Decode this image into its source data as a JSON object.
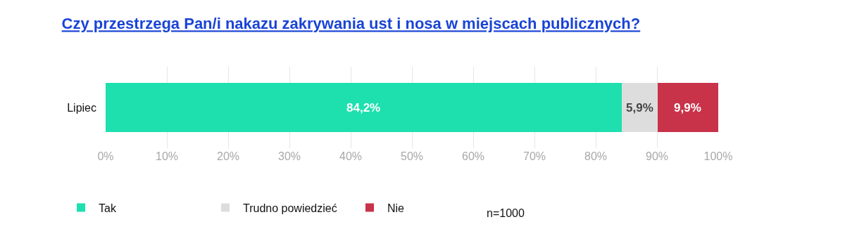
{
  "chart_data": {
    "type": "bar",
    "orientation": "horizontal",
    "stacked": true,
    "title": "Czy przestrzega Pan/i nakazu zakrywania ust i nosa w miejscach publicznych?",
    "categories": [
      "Lipiec"
    ],
    "series": [
      {
        "name": "Tak",
        "color": "#1de0ae",
        "values": [
          84.2
        ],
        "value_labels": [
          "84,2%"
        ]
      },
      {
        "name": "Trudno powiedzieć",
        "color": "#dddddd",
        "values": [
          5.9
        ],
        "value_labels": [
          "5,9%"
        ]
      },
      {
        "name": "Nie",
        "color": "#c8334a",
        "values": [
          9.9
        ],
        "value_labels": [
          "9,9%"
        ]
      }
    ],
    "xlim": [
      0,
      100
    ],
    "xticks": [
      {
        "value": 0,
        "label": "0%"
      },
      {
        "value": 10,
        "label": "10%"
      },
      {
        "value": 20,
        "label": "20%"
      },
      {
        "value": 30,
        "label": "30%"
      },
      {
        "value": 40,
        "label": "40%"
      },
      {
        "value": 50,
        "label": "50%"
      },
      {
        "value": 60,
        "label": "60%"
      },
      {
        "value": 70,
        "label": "70%"
      },
      {
        "value": 80,
        "label": "80%"
      },
      {
        "value": 90,
        "label": "90%"
      },
      {
        "value": 100,
        "label": "100%"
      }
    ],
    "grid": "x",
    "legend": "bottom",
    "annotations": [
      "n=1000"
    ]
  }
}
